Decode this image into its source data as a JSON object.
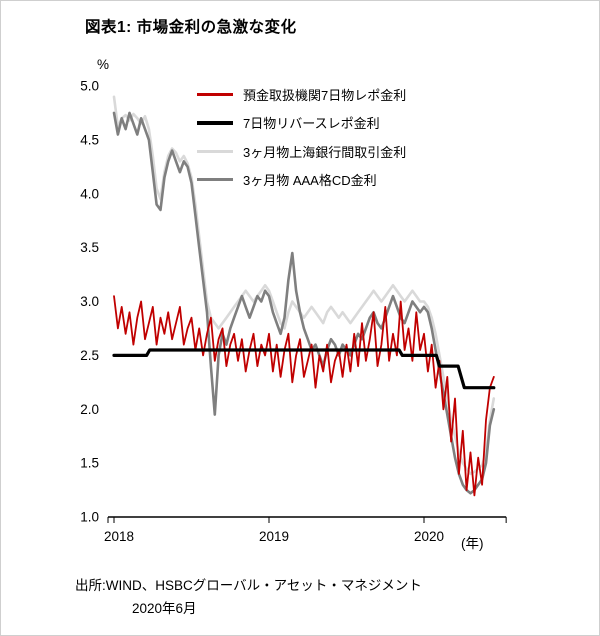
{
  "page": {
    "title": "図表1: 市場金利の急激な変化",
    "source_line1": "出所:WIND、HSBCグローバル・アセット・マネジメント",
    "source_line2": "2020年6月"
  },
  "chart_data": {
    "type": "line",
    "title": "図表1: 市場金利の急激な変化",
    "y_unit_label": "%",
    "x_unit_label": "(年)",
    "x_ticks": [
      "2018",
      "2019",
      "2020"
    ],
    "y_ticks": [
      "5.0",
      "4.5",
      "4.0",
      "3.5",
      "3.0",
      "2.5",
      "2.0",
      "1.5",
      "1.0"
    ],
    "xlim": [
      2018.0,
      2020.53
    ],
    "ylim": [
      1.0,
      5.0
    ],
    "grid": false,
    "legend_position": "top-inside",
    "draw_order": [
      2,
      3,
      0,
      1
    ],
    "series": [
      {
        "name": "預金取扱機関7日物レポ金利",
        "color": "#c00000",
        "width": 1.8,
        "legend_thickness": 3,
        "x_start": 2018.0,
        "x_step": 0.025,
        "values": [
          3.05,
          2.75,
          2.95,
          2.7,
          2.9,
          2.6,
          2.85,
          3.0,
          2.65,
          2.8,
          2.95,
          2.6,
          2.85,
          2.7,
          2.9,
          2.65,
          2.8,
          2.95,
          2.6,
          2.75,
          2.85,
          2.55,
          2.75,
          2.5,
          2.7,
          2.85,
          2.45,
          2.65,
          2.75,
          2.4,
          2.6,
          2.7,
          2.45,
          2.65,
          2.35,
          2.55,
          2.7,
          2.4,
          2.6,
          2.5,
          2.7,
          2.35,
          2.6,
          2.3,
          2.55,
          2.7,
          2.25,
          2.5,
          2.65,
          2.3,
          2.45,
          2.6,
          2.2,
          2.5,
          2.35,
          2.6,
          2.25,
          2.45,
          2.55,
          2.3,
          2.6,
          2.35,
          2.7,
          2.4,
          2.8,
          2.45,
          2.65,
          2.9,
          2.4,
          2.6,
          2.95,
          2.45,
          2.7,
          2.5,
          3.0,
          2.55,
          2.75,
          2.45,
          2.9,
          2.55,
          2.7,
          2.35,
          2.6,
          2.2,
          2.45,
          2.0,
          2.3,
          1.7,
          2.1,
          1.4,
          1.8,
          1.25,
          1.6,
          1.2,
          1.55,
          1.3,
          1.9,
          2.2,
          2.3
        ]
      },
      {
        "name": "7日物リバースレポ金利",
        "color": "#000000",
        "width": 3.2,
        "legend_thickness": 4,
        "points": [
          [
            2018.0,
            2.5
          ],
          [
            2018.21,
            2.5
          ],
          [
            2018.23,
            2.55
          ],
          [
            2019.84,
            2.55
          ],
          [
            2019.86,
            2.5
          ],
          [
            2020.08,
            2.5
          ],
          [
            2020.1,
            2.4
          ],
          [
            2020.22,
            2.4
          ],
          [
            2020.26,
            2.2
          ],
          [
            2020.45,
            2.2
          ]
        ]
      },
      {
        "name": "3ヶ月物上海銀行間取引金利",
        "color": "#d9d9d9",
        "width": 2.6,
        "legend_thickness": 3,
        "x_start": 2018.0,
        "x_step": 0.025,
        "values": [
          4.9,
          4.62,
          4.7,
          4.73,
          4.68,
          4.74,
          4.7,
          4.65,
          4.72,
          4.6,
          4.35,
          4.05,
          3.95,
          4.2,
          4.35,
          4.42,
          4.38,
          4.3,
          4.35,
          4.28,
          4.15,
          3.9,
          3.6,
          3.3,
          3.0,
          2.85,
          2.8,
          2.75,
          2.8,
          2.85,
          2.9,
          2.95,
          3.0,
          3.05,
          3.1,
          3.05,
          3.0,
          3.05,
          3.1,
          3.15,
          3.1,
          3.0,
          2.9,
          2.8,
          2.75,
          2.9,
          3.0,
          2.95,
          2.9,
          2.85,
          2.9,
          2.95,
          2.9,
          2.85,
          2.8,
          2.9,
          2.95,
          2.9,
          2.85,
          2.9,
          2.85,
          2.8,
          2.85,
          2.9,
          2.95,
          3.0,
          3.05,
          3.1,
          3.05,
          3.0,
          3.05,
          3.1,
          3.15,
          3.1,
          3.05,
          3.0,
          3.05,
          3.1,
          3.05,
          3.0,
          3.0,
          2.95,
          2.85,
          2.7,
          2.5,
          2.3,
          2.1,
          1.9,
          1.75,
          1.6,
          1.5,
          1.45,
          1.4,
          1.42,
          1.45,
          1.48,
          1.6,
          1.9,
          2.1
        ]
      },
      {
        "name": "3ヶ月物 AAA格CD金利",
        "color": "#7f7f7f",
        "width": 2.6,
        "legend_thickness": 3,
        "x_start": 2018.0,
        "x_step": 0.025,
        "values": [
          4.75,
          4.55,
          4.7,
          4.6,
          4.75,
          4.65,
          4.55,
          4.7,
          4.6,
          4.5,
          4.2,
          3.9,
          3.85,
          4.15,
          4.3,
          4.4,
          4.3,
          4.2,
          4.3,
          4.25,
          4.1,
          3.8,
          3.5,
          3.2,
          2.9,
          2.4,
          1.95,
          2.5,
          2.7,
          2.6,
          2.75,
          2.85,
          2.95,
          3.05,
          2.95,
          2.85,
          2.95,
          3.05,
          3.0,
          3.1,
          3.05,
          2.9,
          2.8,
          2.7,
          2.85,
          3.2,
          3.45,
          3.1,
          2.9,
          2.75,
          2.65,
          2.55,
          2.6,
          2.5,
          2.4,
          2.55,
          2.65,
          2.6,
          2.5,
          2.6,
          2.55,
          2.5,
          2.6,
          2.7,
          2.65,
          2.75,
          2.85,
          2.9,
          2.8,
          2.75,
          2.85,
          2.95,
          3.05,
          2.95,
          2.85,
          2.8,
          2.9,
          3.0,
          2.95,
          2.9,
          2.95,
          2.9,
          2.75,
          2.55,
          2.35,
          2.15,
          1.95,
          1.75,
          1.55,
          1.4,
          1.3,
          1.25,
          1.22,
          1.25,
          1.3,
          1.35,
          1.5,
          1.85,
          2.0
        ]
      }
    ]
  }
}
